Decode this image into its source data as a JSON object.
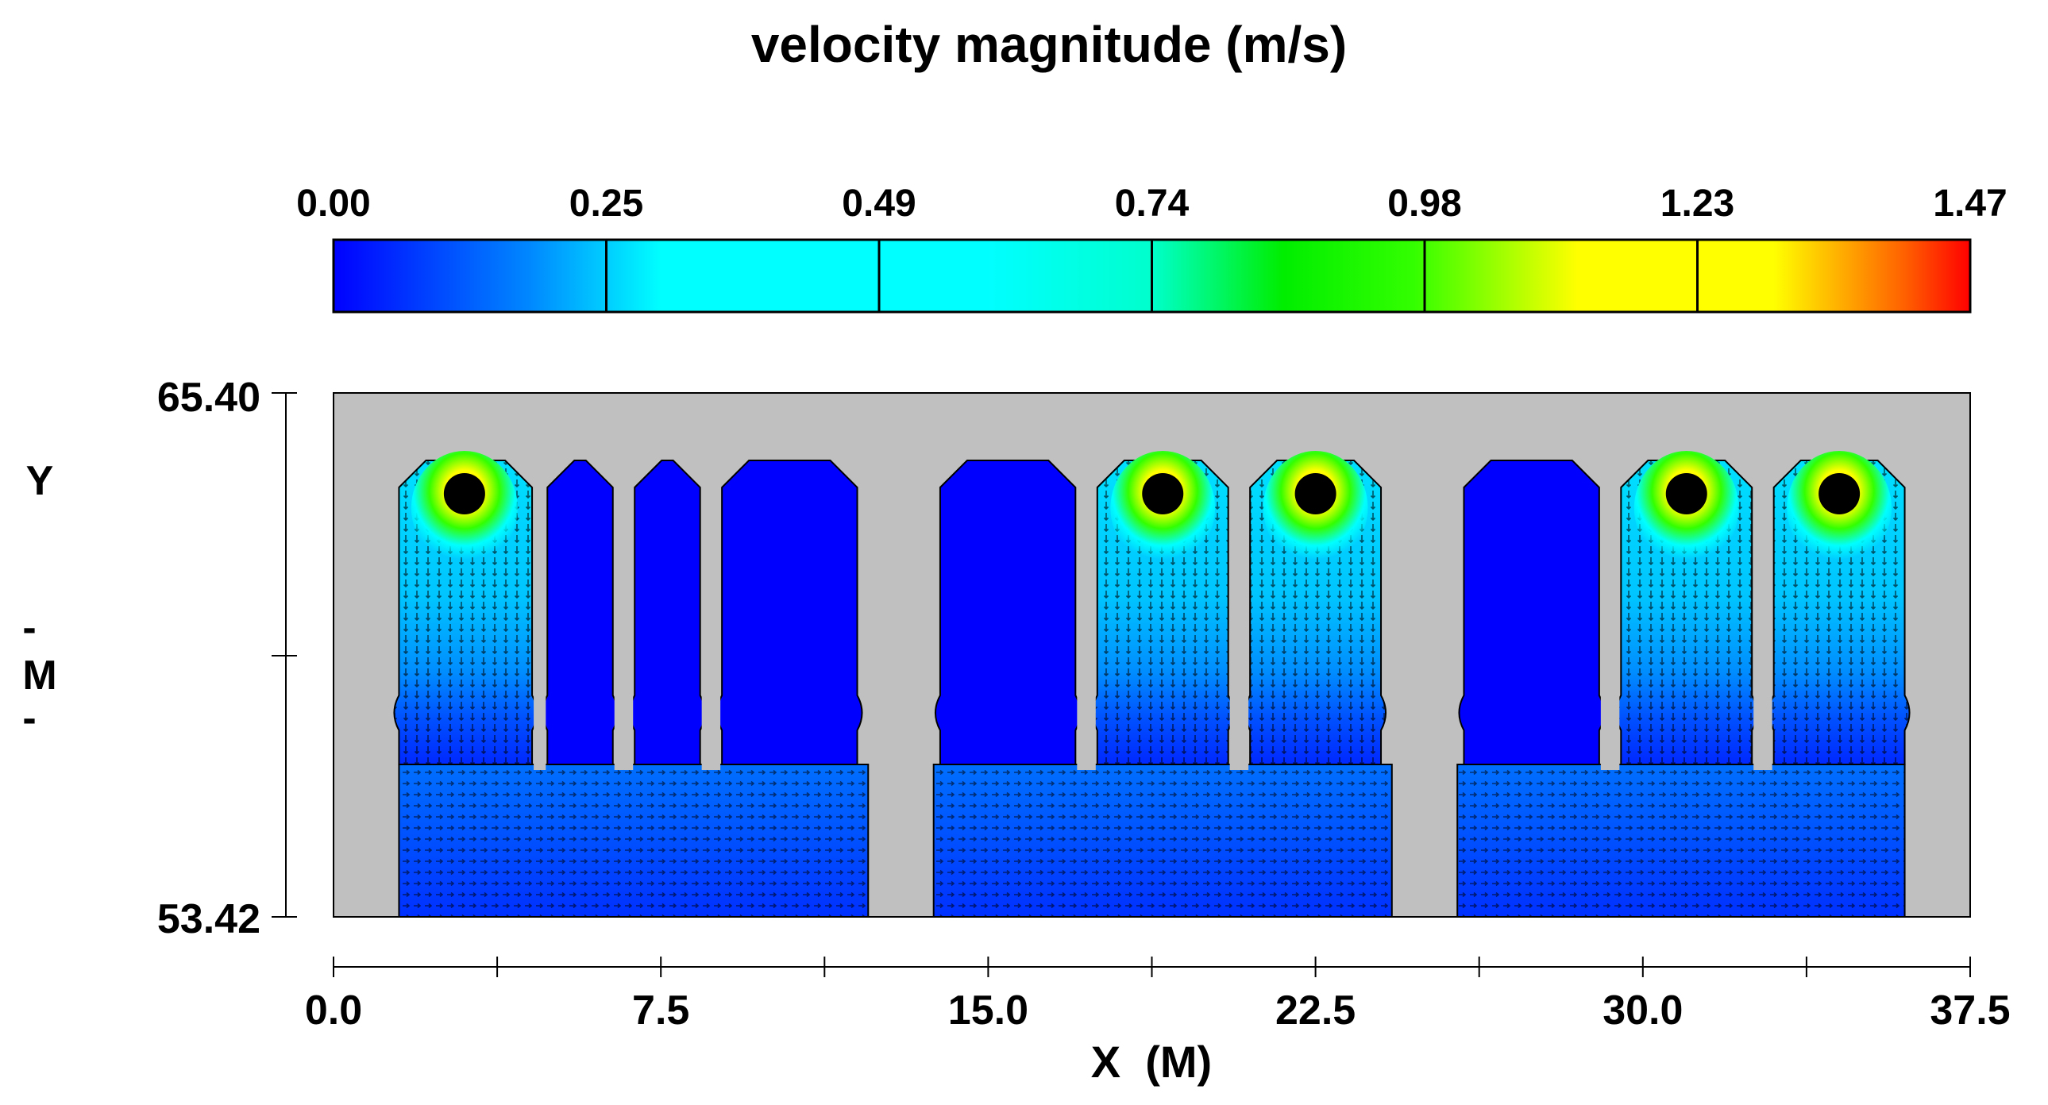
{
  "chart_data": {
    "type": "heatmap",
    "title": "velocity magnitude (m/s)",
    "colorbar": {
      "min": 0.0,
      "max": 1.47,
      "tick_labels": [
        "0.00",
        "0.25",
        "0.49",
        "0.74",
        "0.98",
        "1.23",
        "1.47"
      ],
      "colors": [
        "#0000ff",
        "#00ffff",
        "#00ff00",
        "#ffff00",
        "#ff0000"
      ]
    },
    "xaxis": {
      "label": "X  (M)",
      "range": [
        0.0,
        37.5
      ],
      "tick_values": [
        0.0,
        7.5,
        15.0,
        22.5,
        30.0,
        37.5
      ],
      "tick_labels": [
        "0.0",
        "7.5",
        "15.0",
        "22.5",
        "30.0",
        "37.5"
      ],
      "minor_tick_values": [
        3.75,
        11.25,
        18.75,
        26.25,
        33.75
      ]
    },
    "yaxis": {
      "label_top": "Y",
      "label_dash": "-",
      "label_unit": "M",
      "range": [
        53.42,
        65.4
      ],
      "tick_labels": [
        "65.40",
        "53.42"
      ]
    },
    "background_color": "#c0c0c0",
    "sections": [
      {
        "x_range": [
          1.5,
          12.25
        ],
        "chambers": [
          {
            "x_range": [
              1.5,
              4.55
            ],
            "flow": "active",
            "max_velocity_x": 3.0
          },
          {
            "x_range": [
              4.9,
              6.4
            ],
            "flow": "stagnant"
          },
          {
            "x_range": [
              6.9,
              8.4
            ],
            "flow": "stagnant"
          },
          {
            "x_range": [
              8.9,
              12.0
            ],
            "flow": "stagnant"
          }
        ]
      },
      {
        "x_range": [
          13.75,
          24.25
        ],
        "chambers": [
          {
            "x_range": [
              13.9,
              17.0
            ],
            "flow": "stagnant"
          },
          {
            "x_range": [
              17.5,
              20.5
            ],
            "flow": "active",
            "max_velocity_x": 19.0
          },
          {
            "x_range": [
              21.0,
              24.0
            ],
            "flow": "active",
            "max_velocity_x": 22.5
          }
        ]
      },
      {
        "x_range": [
          25.75,
          36.0
        ],
        "chambers": [
          {
            "x_range": [
              25.9,
              29.0
            ],
            "flow": "stagnant"
          },
          {
            "x_range": [
              29.5,
              32.5
            ],
            "flow": "active",
            "max_velocity_x": 31.0
          },
          {
            "x_range": [
              33.0,
              36.0
            ],
            "flow": "active",
            "max_velocity_x": 34.5
          }
        ]
      }
    ]
  }
}
